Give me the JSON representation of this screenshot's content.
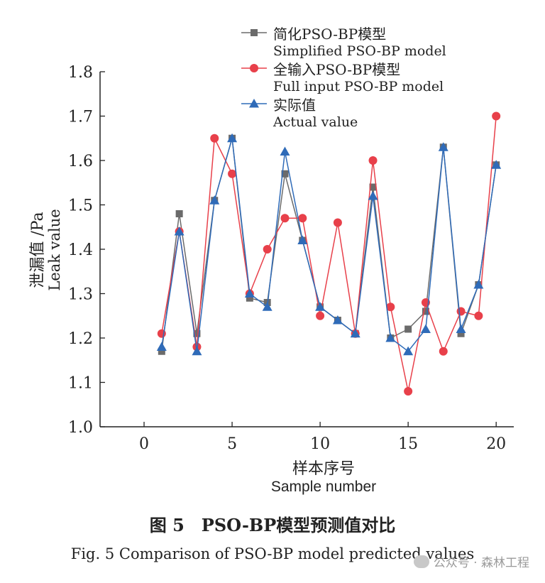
{
  "chart_data": {
    "type": "line",
    "xlabel_cn": "样本序号",
    "xlabel_en": "Sample number",
    "ylabel_cn": "泄漏值 /Pa",
    "ylabel_en": "Leak value",
    "xlim": [
      -2.5,
      21
    ],
    "ylim": [
      1.0,
      1.8
    ],
    "xticks": [
      0,
      5,
      10,
      15,
      20
    ],
    "yticks": [
      1.0,
      1.1,
      1.2,
      1.3,
      1.4,
      1.5,
      1.6,
      1.7,
      1.8
    ],
    "x": [
      1,
      2,
      3,
      4,
      5,
      6,
      7,
      8,
      9,
      10,
      11,
      12,
      13,
      14,
      15,
      16,
      17,
      18,
      19,
      20
    ],
    "legend_position": "top",
    "series": [
      {
        "name_cn": "简化PSO-BP模型",
        "name_en": "Simplified PSO-BP model",
        "color": "#6b6b6b",
        "marker": "square",
        "values": [
          1.17,
          1.48,
          1.21,
          1.51,
          1.65,
          1.29,
          1.28,
          1.57,
          1.42,
          1.27,
          1.24,
          1.21,
          1.54,
          1.2,
          1.22,
          1.26,
          1.63,
          1.21,
          1.32,
          1.59
        ]
      },
      {
        "name_cn": "全输入PSO-BP模型",
        "name_en": "Full input PSO-BP model",
        "color": "#e8404a",
        "marker": "circle",
        "values": [
          1.21,
          1.44,
          1.18,
          1.65,
          1.57,
          1.3,
          1.4,
          1.47,
          1.47,
          1.25,
          1.46,
          1.21,
          1.6,
          1.27,
          1.08,
          1.28,
          1.17,
          1.26,
          1.25,
          1.7
        ]
      },
      {
        "name_cn": "实际值",
        "name_en": "Actual value",
        "color": "#2f6bb8",
        "marker": "triangle",
        "values": [
          1.18,
          1.44,
          1.17,
          1.51,
          1.65,
          1.3,
          1.27,
          1.62,
          1.42,
          1.27,
          1.24,
          1.21,
          1.52,
          1.2,
          1.17,
          1.22,
          1.63,
          1.22,
          1.32,
          1.59
        ]
      }
    ]
  },
  "caption": {
    "cn": "图 5　PSO-BP模型预测值对比",
    "en": "Fig. 5  Comparison of PSO-BP model predicted values"
  },
  "watermark": {
    "text": "公众号 · 森林工程"
  }
}
